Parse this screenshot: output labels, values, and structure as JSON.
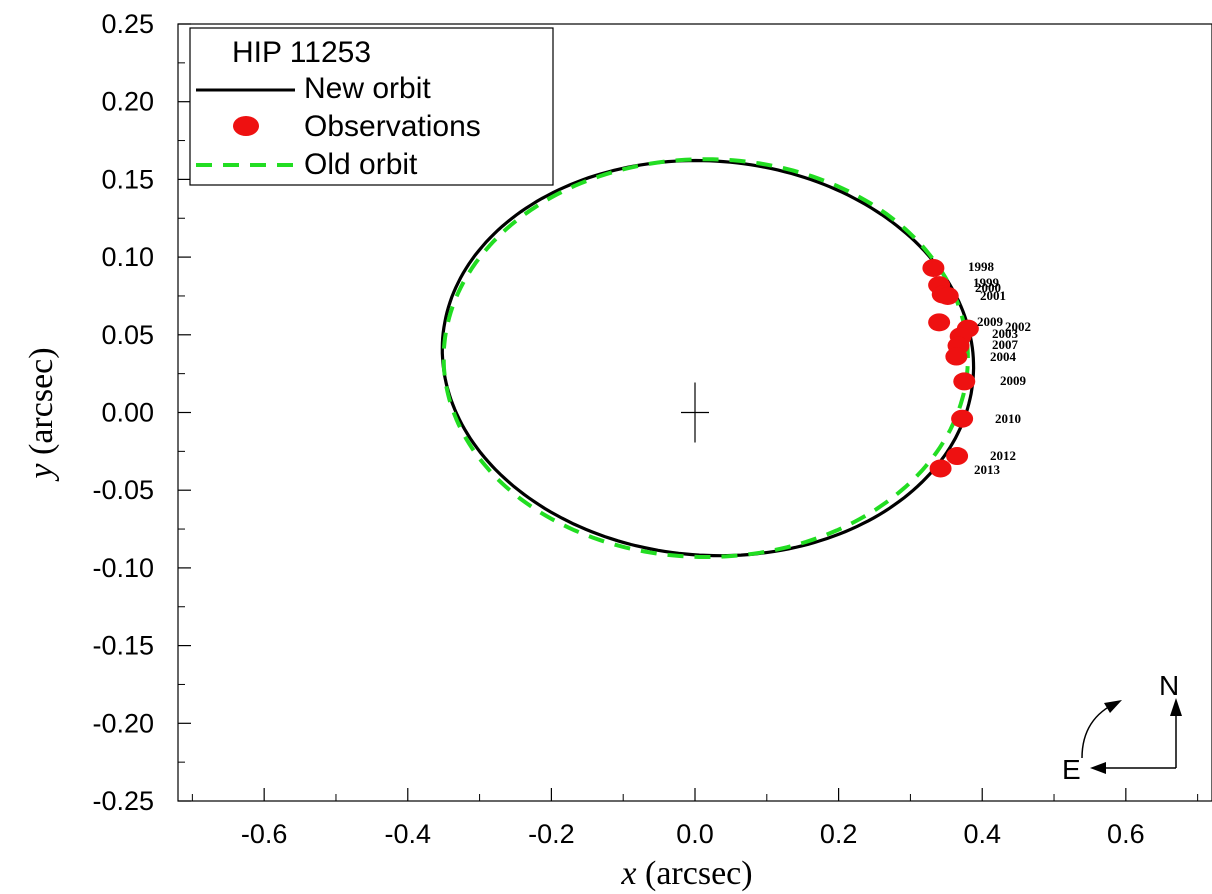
{
  "chart_data": {
    "type": "scatter",
    "xlabel_var": "x",
    "xlabel_unit": "(arcsec)",
    "ylabel_var": "y",
    "ylabel_unit": "(arcsec)",
    "xlim": [
      -0.72,
      0.72
    ],
    "ylim": [
      -0.25,
      0.25
    ],
    "x_ticks": [
      -0.6,
      -0.4,
      -0.2,
      0.0,
      0.2,
      0.4,
      0.6
    ],
    "x_tick_labels": [
      "-0.6",
      "-0.4",
      "-0.2",
      "0.0",
      "0.2",
      "0.4",
      "0.6"
    ],
    "y_ticks": [
      0.25,
      0.2,
      0.15,
      0.1,
      0.05,
      0.0,
      -0.05,
      -0.1,
      -0.15,
      -0.2,
      -0.25
    ],
    "y_tick_labels": [
      "0.25",
      "0.20",
      "0.15",
      "0.10",
      "0.05",
      "0.00",
      "-0.05",
      "-0.10",
      "-0.15",
      "-0.20",
      "-0.25"
    ],
    "legend": {
      "title": "HIP 11253",
      "placement": "top-left",
      "entries": [
        "New orbit",
        "Observations",
        "Old orbit"
      ]
    },
    "colors": {
      "new_orbit": "#000000",
      "observations": "#ee1111",
      "old_orbit": "#22dd22"
    },
    "new_orbit": {
      "center": [
        0.018,
        0.035
      ],
      "semi_axes": [
        0.37,
        0.127
      ],
      "rotation_deg": -1
    },
    "old_orbit": {
      "center": [
        0.015,
        0.035
      ],
      "semi_axes": [
        0.365,
        0.128
      ],
      "rotation_deg": 0
    },
    "primary_star": [
      0.0,
      0.0
    ],
    "observations": [
      {
        "x": 0.332,
        "y": 0.093,
        "label": "1998"
      },
      {
        "x": 0.34,
        "y": 0.082,
        "label": "1999"
      },
      {
        "x": 0.345,
        "y": 0.076,
        "label": "2000"
      },
      {
        "x": 0.352,
        "y": 0.075,
        "label": "2001"
      },
      {
        "x": 0.34,
        "y": 0.058,
        "label": "2009"
      },
      {
        "x": 0.38,
        "y": 0.054,
        "label": "2002"
      },
      {
        "x": 0.37,
        "y": 0.049,
        "label": "2003"
      },
      {
        "x": 0.367,
        "y": 0.043,
        "label": "2007"
      },
      {
        "x": 0.364,
        "y": 0.036,
        "label": "2004"
      },
      {
        "x": 0.375,
        "y": 0.02,
        "label": "2009"
      },
      {
        "x": 0.372,
        "y": -0.004,
        "label": "2010"
      },
      {
        "x": 0.365,
        "y": -0.028,
        "label": "2012"
      },
      {
        "x": 0.342,
        "y": -0.036,
        "label": "2013"
      }
    ],
    "compass": {
      "north": "N",
      "east": "E"
    }
  }
}
